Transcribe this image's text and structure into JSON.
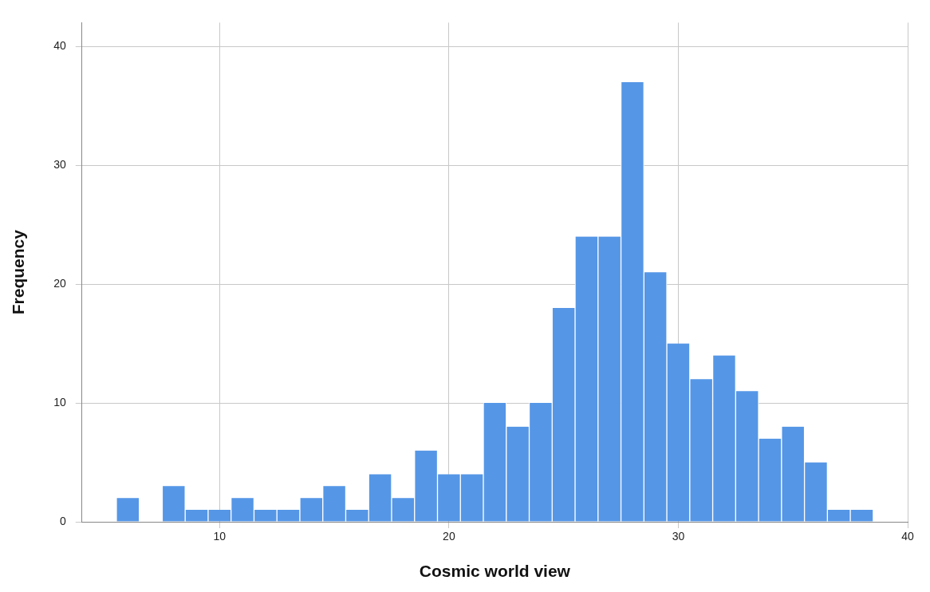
{
  "chart_data": {
    "type": "histogram",
    "xlabel": "Cosmic world view",
    "ylabel": "Frequency",
    "bins": [
      5.5,
      6.5,
      7.5,
      8.5,
      9.5,
      10.5,
      11.5,
      12.5,
      13.5,
      14.5,
      15.5,
      16.5,
      17.5,
      18.5,
      19.5,
      20.5,
      21.5,
      22.5,
      23.5,
      24.5,
      25.5,
      26.5,
      27.5,
      28.5,
      29.5,
      30.5,
      31.5,
      32.5,
      33.5,
      34.5,
      35.5,
      36.5,
      37.5,
      38.5
    ],
    "values": [
      2,
      0,
      3,
      1,
      1,
      2,
      1,
      1,
      2,
      3,
      1,
      4,
      2,
      6,
      4,
      4,
      10,
      8,
      10,
      18,
      24,
      24,
      37,
      21,
      15,
      12,
      14,
      11,
      7,
      8,
      5,
      1,
      1
    ],
    "color": "#5596e6",
    "xlim": [
      4,
      40
    ],
    "xticks": [
      10,
      20,
      30,
      40
    ],
    "ylim": [
      0,
      42
    ],
    "yticks": [
      0,
      10,
      20,
      30,
      40
    ],
    "grid": true,
    "legend": false
  }
}
